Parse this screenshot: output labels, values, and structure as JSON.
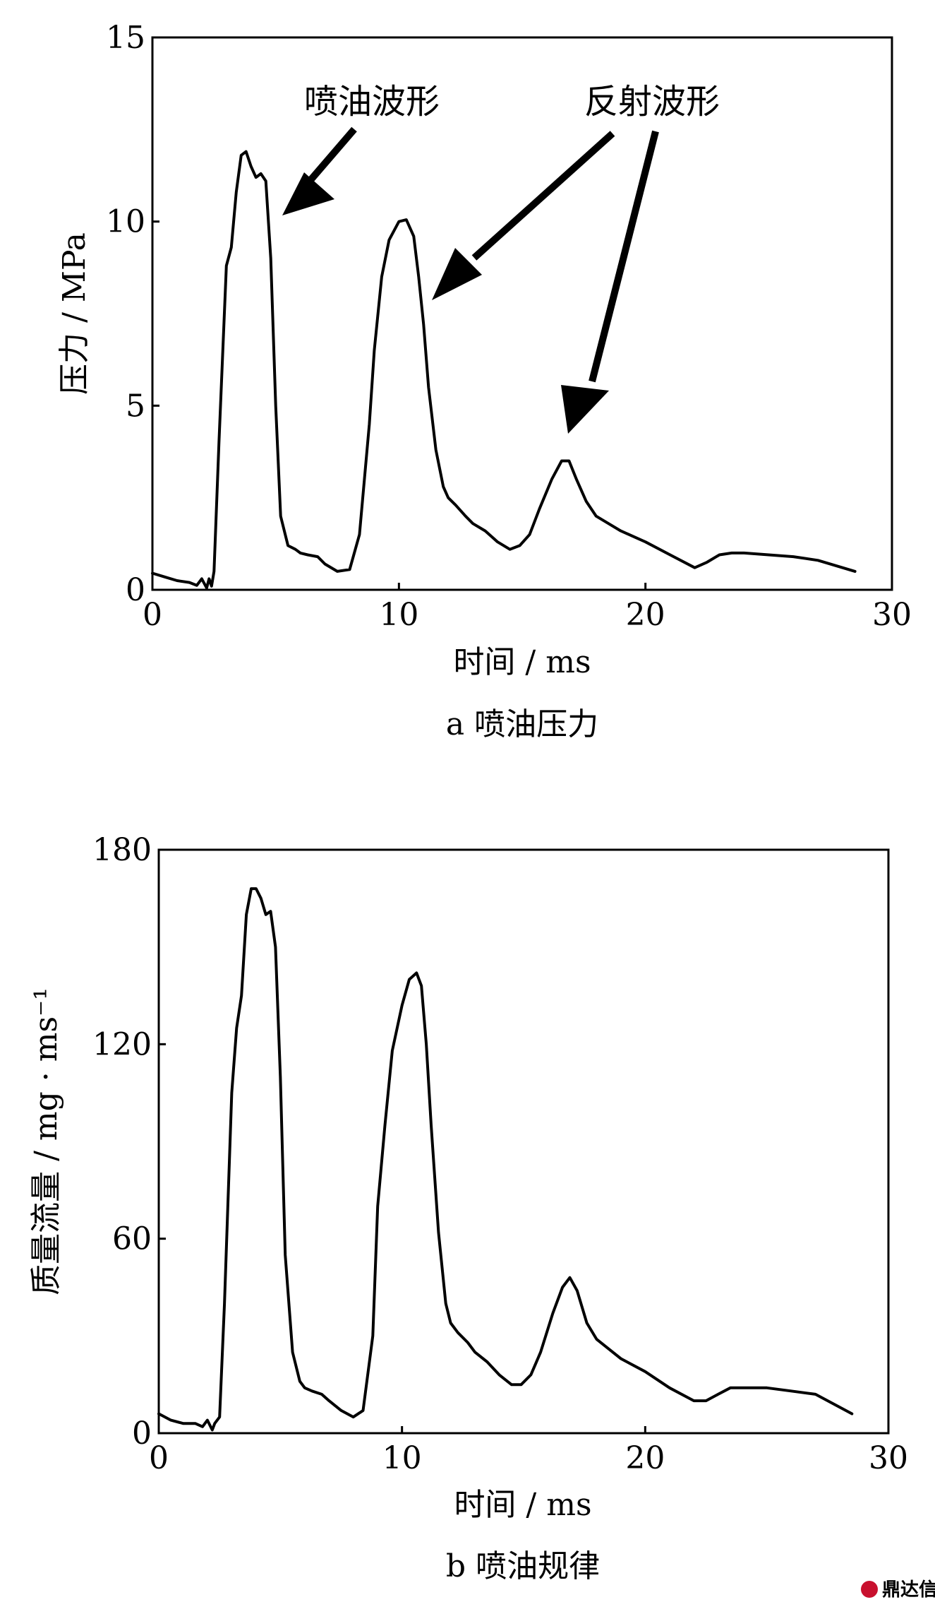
{
  "chart_data": [
    {
      "type": "line",
      "caption": "a  喷油压力",
      "xlabel": "时间 / ms",
      "ylabel": "压力 / MPa",
      "xlim": [
        0,
        30
      ],
      "ylim": [
        0,
        15
      ],
      "xticks": [
        "0",
        "10",
        "20",
        "30"
      ],
      "yticks": [
        "0",
        "5",
        "10",
        "15"
      ],
      "annotations": [
        {
          "text": "喷油波形",
          "target": [
            5.3,
            10.2
          ]
        },
        {
          "text": "反射波形",
          "targets": [
            [
              11.3,
              7.8
            ],
            [
              16.9,
              4.4
            ]
          ]
        }
      ],
      "series": [
        {
          "x": [
            0,
            0.5,
            1.0,
            1.5,
            1.8,
            2.0,
            2.2,
            2.3,
            2.4,
            2.5,
            2.7,
            3.0,
            3.2,
            3.4,
            3.6,
            3.8,
            4.0,
            4.2,
            4.4,
            4.6,
            4.8,
            5.0,
            5.2,
            5.5,
            5.8,
            6.0,
            6.3,
            6.7,
            7.0,
            7.5,
            8.0,
            8.4,
            8.8,
            9.0,
            9.3,
            9.6,
            10.0,
            10.3,
            10.6,
            10.8,
            11.0,
            11.2,
            11.5,
            11.8,
            12.0,
            12.3,
            12.7,
            13.0,
            13.5,
            14.0,
            14.5,
            14.9,
            15.3,
            15.7,
            16.2,
            16.6,
            16.9,
            17.2,
            17.6,
            18.0,
            18.5,
            19.0,
            20.0,
            21.0,
            22.0,
            22.5,
            23.0,
            23.5,
            24.0,
            25.0,
            26.0,
            27.0,
            28.5
          ],
          "y": [
            0.45,
            0.35,
            0.25,
            0.2,
            0.12,
            0.3,
            0.05,
            0.3,
            0.1,
            0.5,
            4.0,
            8.8,
            9.3,
            10.8,
            11.8,
            11.9,
            11.5,
            11.2,
            11.3,
            11.1,
            9.0,
            5.0,
            2.0,
            1.2,
            1.1,
            1.0,
            0.95,
            0.9,
            0.7,
            0.5,
            0.55,
            1.5,
            4.5,
            6.5,
            8.5,
            9.5,
            10.0,
            10.05,
            9.6,
            8.5,
            7.2,
            5.5,
            3.8,
            2.8,
            2.5,
            2.3,
            2.0,
            1.8,
            1.6,
            1.3,
            1.1,
            1.2,
            1.5,
            2.2,
            3.0,
            3.5,
            3.5,
            3.0,
            2.4,
            2.0,
            1.8,
            1.6,
            1.3,
            0.95,
            0.6,
            0.75,
            0.95,
            1.0,
            1.0,
            0.95,
            0.9,
            0.8,
            0.5
          ]
        }
      ]
    },
    {
      "type": "line",
      "caption": "b  喷油规律",
      "xlabel": "时间 / ms",
      "ylabel": "质量流量 / mg · ms⁻¹",
      "xlim": [
        0,
        30
      ],
      "ylim": [
        0,
        180
      ],
      "xticks": [
        "0",
        "10",
        "20",
        "30"
      ],
      "yticks": [
        "0",
        "60",
        "120",
        "180"
      ],
      "series": [
        {
          "x": [
            0,
            0.5,
            1.0,
            1.5,
            1.8,
            2.0,
            2.2,
            2.3,
            2.5,
            2.7,
            3.0,
            3.2,
            3.4,
            3.6,
            3.8,
            4.0,
            4.2,
            4.4,
            4.6,
            4.8,
            5.0,
            5.2,
            5.5,
            5.8,
            6.0,
            6.3,
            6.7,
            7.0,
            7.5,
            8.0,
            8.4,
            8.8,
            9.0,
            9.3,
            9.6,
            10.0,
            10.3,
            10.6,
            10.8,
            11.0,
            11.2,
            11.5,
            11.8,
            12.0,
            12.3,
            12.7,
            13.0,
            13.5,
            14.0,
            14.5,
            14.9,
            15.3,
            15.7,
            16.2,
            16.6,
            16.9,
            17.2,
            17.6,
            18.0,
            18.5,
            19.0,
            20.0,
            21.0,
            22.0,
            22.5,
            23.0,
            23.5,
            24.0,
            25.0,
            26.0,
            27.0,
            28.5
          ],
          "y": [
            6,
            4,
            3,
            3,
            2,
            4,
            1,
            3,
            5,
            40,
            105,
            125,
            135,
            160,
            168,
            168,
            165,
            160,
            161,
            150,
            110,
            55,
            25,
            16,
            14,
            13,
            12,
            10,
            7,
            5,
            7,
            30,
            70,
            95,
            118,
            132,
            140,
            142,
            138,
            120,
            95,
            62,
            40,
            34,
            31,
            28,
            25,
            22,
            18,
            15,
            15,
            18,
            25,
            37,
            45,
            48,
            44,
            34,
            29,
            26,
            23,
            19,
            14,
            10,
            10,
            12,
            14,
            14,
            14,
            13,
            12,
            6
          ]
        }
      ]
    }
  ],
  "watermark": {
    "text": "鼎达信",
    "icon": "logo-icon",
    "color": "#c8102e"
  }
}
